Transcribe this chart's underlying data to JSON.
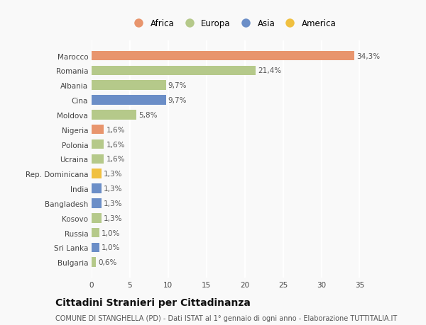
{
  "categories": [
    "Bulgaria",
    "Sri Lanka",
    "Russia",
    "Kosovo",
    "Bangladesh",
    "India",
    "Rep. Dominicana",
    "Ucraina",
    "Polonia",
    "Nigeria",
    "Moldova",
    "Cina",
    "Albania",
    "Romania",
    "Marocco"
  ],
  "values": [
    0.6,
    1.0,
    1.0,
    1.3,
    1.3,
    1.3,
    1.3,
    1.6,
    1.6,
    1.6,
    5.8,
    9.7,
    9.7,
    21.4,
    34.3
  ],
  "labels": [
    "0,6%",
    "1,0%",
    "1,0%",
    "1,3%",
    "1,3%",
    "1,3%",
    "1,3%",
    "1,6%",
    "1,6%",
    "1,6%",
    "5,8%",
    "9,7%",
    "9,7%",
    "21,4%",
    "34,3%"
  ],
  "colors": [
    "#b5c98a",
    "#6b8ec7",
    "#b5c98a",
    "#b5c98a",
    "#6b8ec7",
    "#6b8ec7",
    "#f0c040",
    "#b5c98a",
    "#b5c98a",
    "#e8956d",
    "#b5c98a",
    "#6b8ec7",
    "#b5c98a",
    "#b5c98a",
    "#e8956d"
  ],
  "legend_labels": [
    "Africa",
    "Europa",
    "Asia",
    "America"
  ],
  "legend_colors": [
    "#e8956d",
    "#b5c98a",
    "#6b8ec7",
    "#f0c040"
  ],
  "title1": "Cittadini Stranieri per Cittadinanza",
  "title2": "COMUNE DI STANGHELLA (PD) - Dati ISTAT al 1° gennaio di ogni anno - Elaborazione TUTTITALIA.IT",
  "xlim": [
    0,
    37
  ],
  "xticks": [
    0,
    5,
    10,
    15,
    20,
    25,
    30,
    35
  ],
  "background_color": "#f9f9f9",
  "grid_color": "#ffffff",
  "bar_height": 0.65,
  "label_fontsize": 7.5,
  "tick_fontsize": 7.5,
  "title1_fontsize": 10,
  "title2_fontsize": 7
}
